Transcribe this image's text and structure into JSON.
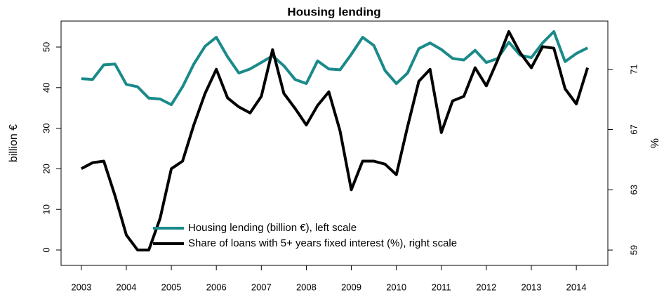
{
  "chart_data": {
    "type": "line",
    "title": "Housing lending",
    "ylabel": "billion €",
    "y2label": "%",
    "x": [
      2003,
      2003.25,
      2003.5,
      2003.75,
      2004,
      2004.25,
      2004.5,
      2004.75,
      2005,
      2005.25,
      2005.5,
      2005.75,
      2006,
      2006.25,
      2006.5,
      2006.75,
      2007,
      2007.25,
      2007.5,
      2007.75,
      2008,
      2008.25,
      2008.5,
      2008.75,
      2009,
      2009.25,
      2009.5,
      2009.75,
      2010,
      2010.25,
      2010.5,
      2010.75,
      2011,
      2011.25,
      2011.5,
      2011.75,
      2012,
      2012.25,
      2012.5,
      2012.75,
      2013,
      2013.25,
      2013.5,
      2013.75,
      2014,
      2014.25
    ],
    "series": [
      {
        "name": "Housing lending (billion €), left scale",
        "color": "#1a8a8a",
        "axis": "y",
        "values": [
          42.2,
          42.0,
          45.6,
          45.8,
          40.8,
          40.2,
          37.4,
          37.2,
          35.8,
          40.2,
          45.8,
          50.2,
          52.4,
          47.6,
          43.6,
          44.6,
          46.2,
          47.8,
          45.4,
          42.0,
          41.0,
          46.6,
          44.6,
          44.4,
          48.2,
          52.4,
          50.4,
          44.2,
          41.0,
          43.6,
          49.6,
          51.0,
          49.4,
          47.2,
          46.8,
          49.2,
          46.2,
          47.2,
          51.2,
          48.0,
          47.4,
          51.0,
          53.8,
          46.4,
          48.4,
          49.8
        ]
      },
      {
        "name": "Share of loans with 5+ years fixed interest (%), right scale",
        "color": "#000000",
        "axis": "y2",
        "values": [
          64.4,
          64.8,
          64.9,
          62.6,
          60.0,
          59.0,
          59.0,
          61.1,
          64.4,
          64.9,
          67.3,
          69.4,
          71.0,
          69.1,
          68.5,
          68.1,
          69.2,
          72.3,
          69.4,
          68.4,
          67.3,
          68.6,
          69.5,
          66.9,
          63.0,
          64.9,
          64.9,
          64.7,
          64.0,
          67.2,
          70.2,
          71.0,
          66.8,
          68.9,
          69.2,
          71.1,
          69.9,
          71.6,
          73.5,
          72.1,
          71.1,
          72.5,
          72.4,
          69.7,
          68.7,
          71.1
        ]
      }
    ],
    "xlim": [
      2002.55,
      2014.7
    ],
    "xticks": [
      2003,
      2004,
      2005,
      2006,
      2007,
      2008,
      2009,
      2010,
      2011,
      2012,
      2013,
      2014
    ],
    "ylim": [
      -3.8,
      56.4
    ],
    "yticks": [
      0,
      10,
      20,
      30,
      40,
      50
    ],
    "y2lim": [
      57.98,
      74.2
    ],
    "y2ticks": [
      59,
      63,
      67,
      71
    ],
    "legend": "bottom"
  }
}
